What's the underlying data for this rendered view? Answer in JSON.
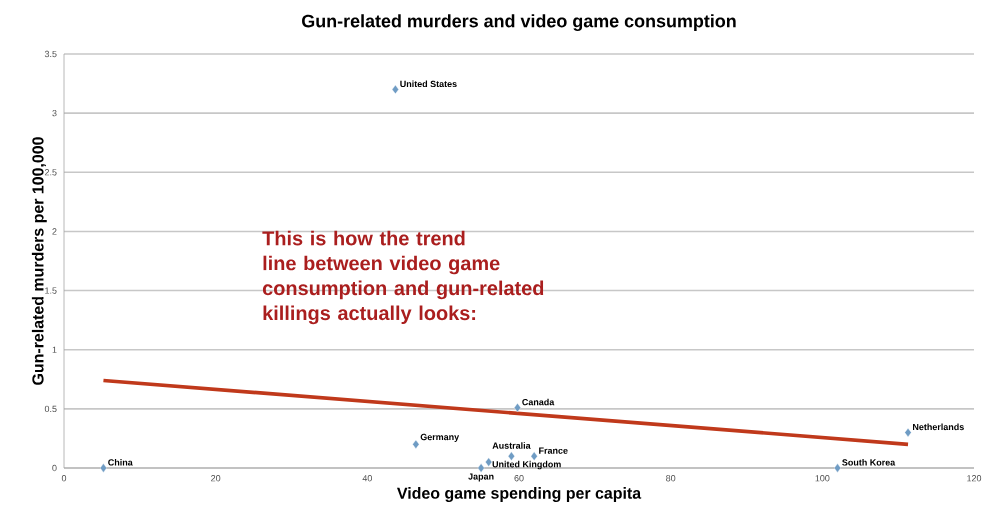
{
  "chart_data": {
    "type": "scatter",
    "title": "Gun-related murders and video game consumption",
    "xlabel": "Video game spending per capita",
    "ylabel": "Gun-related murders per 100,000",
    "xlim": [
      0,
      120
    ],
    "xticks": [
      0,
      20,
      40,
      60,
      80,
      100,
      120
    ],
    "ylim": [
      0,
      3.5
    ],
    "yticks": [
      0,
      0.5,
      1,
      1.5,
      2,
      2.5,
      3,
      3.5
    ],
    "grid": "y",
    "series": [
      {
        "marker": "diamond",
        "color": "#6f9cc4",
        "x": [
          5.2,
          43.7,
          46.4,
          59,
          62,
          55,
          56,
          59.8,
          102,
          111.3
        ],
        "values": [
          0,
          3.2,
          0.2,
          0.1,
          0.1,
          0,
          0.05,
          0.51,
          0,
          0.3
        ]
      },
      {
        "type": "line",
        "color": "#c0391b",
        "x": [
          5.2,
          111.3
        ],
        "values": [
          0.74,
          0.2
        ]
      }
    ],
    "annotations": [
      {
        "text": "China",
        "x": 5.2,
        "y": 0
      },
      {
        "text": "United States",
        "x": 43.7,
        "y": 3.2
      },
      {
        "text": "Germany",
        "x": 46.4,
        "y": 0.2
      },
      {
        "text": "Australia",
        "x": 59,
        "y": 0.1
      },
      {
        "text": "France",
        "x": 62,
        "y": 0.1
      },
      {
        "text": "Japan",
        "x": 55,
        "y": 0
      },
      {
        "text": "United Kingdom",
        "x": 56,
        "y": 0.05
      },
      {
        "text": "Canada",
        "x": 59.8,
        "y": 0.51
      },
      {
        "text": "South Korea",
        "x": 102,
        "y": 0
      },
      {
        "text": "Netherlands",
        "x": 111.3,
        "y": 0.3
      },
      "This is how the trend line between video game consumption and gun-related killings actually looks:"
    ]
  }
}
